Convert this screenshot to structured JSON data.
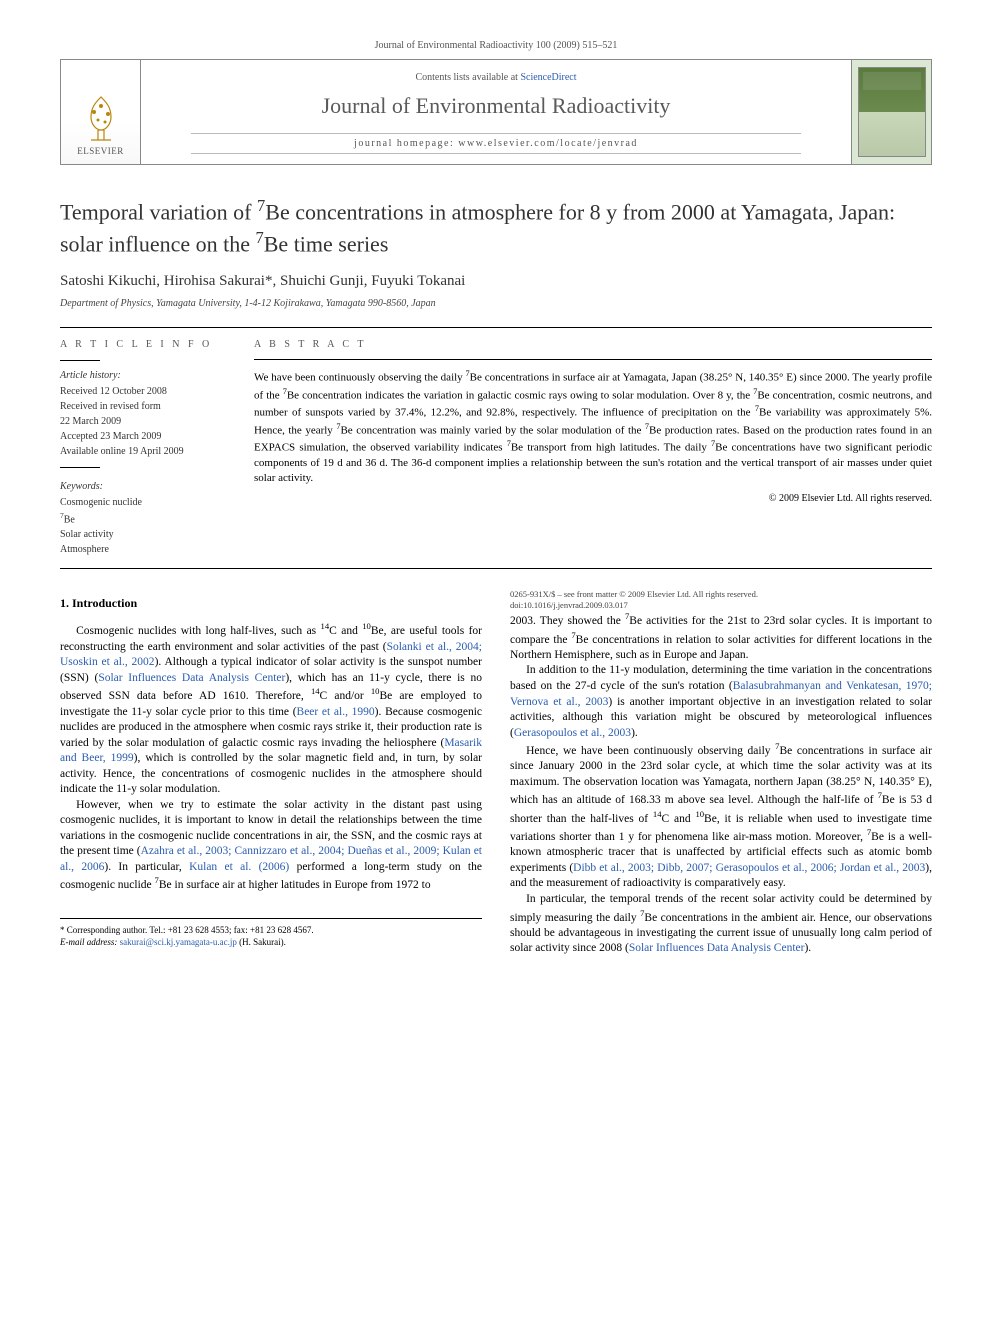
{
  "header": {
    "citation": "Journal of Environmental Radioactivity 100 (2009) 515–521",
    "contents_prefix": "Contents lists available at ",
    "contents_link": "ScienceDirect",
    "journal_title": "Journal of Environmental Radioactivity",
    "homepage_label": "journal homepage: www.elsevier.com/locate/jenvrad",
    "publisher": "ELSEVIER",
    "cover_text": "JOURNAL OF ENVIRONMENTAL RADIOACTIVITY"
  },
  "article": {
    "title_html": "Temporal variation of <sup>7</sup>Be concentrations in atmosphere for 8 y from 2000 at Yamagata, Japan: solar influence on the <sup>7</sup>Be time series",
    "authors": "Satoshi Kikuchi, Hirohisa Sakurai*, Shuichi Gunji, Fuyuki Tokanai",
    "affiliation": "Department of Physics, Yamagata University, 1-4-12 Kojirakawa, Yamagata 990-8560, Japan"
  },
  "article_info": {
    "label": "A R T I C L E   I N F O",
    "history_label": "Article history:",
    "history": [
      "Received 12 October 2008",
      "Received in revised form",
      "22 March 2009",
      "Accepted 23 March 2009",
      "Available online 19 April 2009"
    ],
    "keywords_label": "Keywords:",
    "keywords": [
      "Cosmogenic nuclide",
      "7Be",
      "Solar activity",
      "Atmosphere"
    ]
  },
  "abstract": {
    "label": "A B S T R A C T",
    "text_html": "We have been continuously observing the daily <sup>7</sup>Be concentrations in surface air at Yamagata, Japan (38.25° N, 140.35° E) since 2000. The yearly profile of the <sup>7</sup>Be concentration indicates the variation in galactic cosmic rays owing to solar modulation. Over 8 y, the <sup>7</sup>Be concentration, cosmic neutrons, and number of sunspots varied by 37.4%, 12.2%, and 92.8%, respectively. The influence of precipitation on the <sup>7</sup>Be variability was approximately 5%. Hence, the yearly <sup>7</sup>Be concentration was mainly varied by the solar modulation of the <sup>7</sup>Be production rates. Based on the production rates found in an EXPACS simulation, the observed variability indicates <sup>7</sup>Be transport from high latitudes. The daily <sup>7</sup>Be concentrations have two significant periodic components of 19 d and 36 d. The 36-d component implies a relationship between the sun's rotation and the vertical transport of air masses under quiet solar activity.",
    "copyright": "© 2009 Elsevier Ltd. All rights reserved."
  },
  "body": {
    "section_heading": "1. Introduction",
    "p1_html": "Cosmogenic nuclides with long half-lives, such as <sup>14</sup>C and <sup>10</sup>Be, are useful tools for reconstructing the earth environment and solar activities of the past (<span class=\"ref-link\">Solanki et al., 2004; Usoskin et al., 2002</span>). Although a typical indicator of solar activity is the sunspot number (SSN) (<span class=\"ref-link\">Solar Influences Data Analysis Center</span>), which has an 11-y cycle, there is no observed SSN data before AD 1610. Therefore, <sup>14</sup>C and/or <sup>10</sup>Be are employed to investigate the 11-y solar cycle prior to this time (<span class=\"ref-link\">Beer et al., 1990</span>). Because cosmogenic nuclides are produced in the atmosphere when cosmic rays strike it, their production rate is varied by the solar modulation of galactic cosmic rays invading the heliosphere (<span class=\"ref-link\">Masarik and Beer, 1999</span>), which is controlled by the solar magnetic field and, in turn, by solar activity. Hence, the concentrations of cosmogenic nuclides in the atmosphere should indicate the 11-y solar modulation.",
    "p2_html": "However, when we try to estimate the solar activity in the distant past using cosmogenic nuclides, it is important to know in detail the relationships between the time variations in the cosmogenic nuclide concentrations in air, the SSN, and the cosmic rays at the present time (<span class=\"ref-link\">Azahra et al., 2003; Cannizzaro et al., 2004; Dueñas et al., 2009; Kulan et al., 2006</span>). In particular, <span class=\"ref-link\">Kulan et al. (2006)</span> performed a long-term study on the cosmogenic nuclide <sup>7</sup>Be in surface air at higher latitudes in Europe from 1972 to",
    "p3_html": "2003. They showed the <sup>7</sup>Be activities for the 21st to 23rd solar cycles. It is important to compare the <sup>7</sup>Be concentrations in relation to solar activities for different locations in the Northern Hemisphere, such as in Europe and Japan.",
    "p4_html": "In addition to the 11-y modulation, determining the time variation in the concentrations based on the 27-d cycle of the sun's rotation (<span class=\"ref-link\">Balasubrahmanyan and Venkatesan, 1970; Vernova et al., 2003</span>) is another important objective in an investigation related to solar activities, although this variation might be obscured by meteorological influences (<span class=\"ref-link\">Gerasopoulos et al., 2003</span>).",
    "p5_html": "Hence, we have been continuously observing daily <sup>7</sup>Be concentrations in surface air since January 2000 in the 23rd solar cycle, at which time the solar activity was at its maximum. The observation location was Yamagata, northern Japan (38.25° N, 140.35° E), which has an altitude of 168.33 m above sea level. Although the half-life of <sup>7</sup>Be is 53 d shorter than the half-lives of <sup>14</sup>C and <sup>10</sup>Be, it is reliable when used to investigate time variations shorter than 1 y for phenomena like air-mass motion. Moreover, <sup>7</sup>Be is a well-known atmospheric tracer that is unaffected by artificial effects such as atomic bomb experiments (<span class=\"ref-link\">Dibb et al., 2003; Dibb, 2007; Gerasopoulos et al., 2006; Jordan et al., 2003</span>), and the measurement of radioactivity is comparatively easy.",
    "p6_html": "In particular, the temporal trends of the recent solar activity could be determined by simply measuring the daily <sup>7</sup>Be concentrations in the ambient air. Hence, our observations should be advantageous in investigating the current issue of unusually long calm period of solar activity since 2008 (<span class=\"ref-link\">Solar Influences Data Analysis Center</span>)."
  },
  "footnote": {
    "corr_label": "* Corresponding author. Tel.: +81 23 628 4553; fax: +81 23 628 4567.",
    "email_label": "E-mail address:",
    "email": "sakurai@sci.kj.yamagata-u.ac.jp",
    "email_paren": "(H. Sakurai)."
  },
  "footer": {
    "issn_line": "0265-931X/$ – see front matter © 2009 Elsevier Ltd. All rights reserved.",
    "doi_line": "doi:10.1016/j.jenvrad.2009.03.017"
  },
  "colors": {
    "link": "#2a5db0",
    "rule": "#000000",
    "muted": "#555555"
  }
}
